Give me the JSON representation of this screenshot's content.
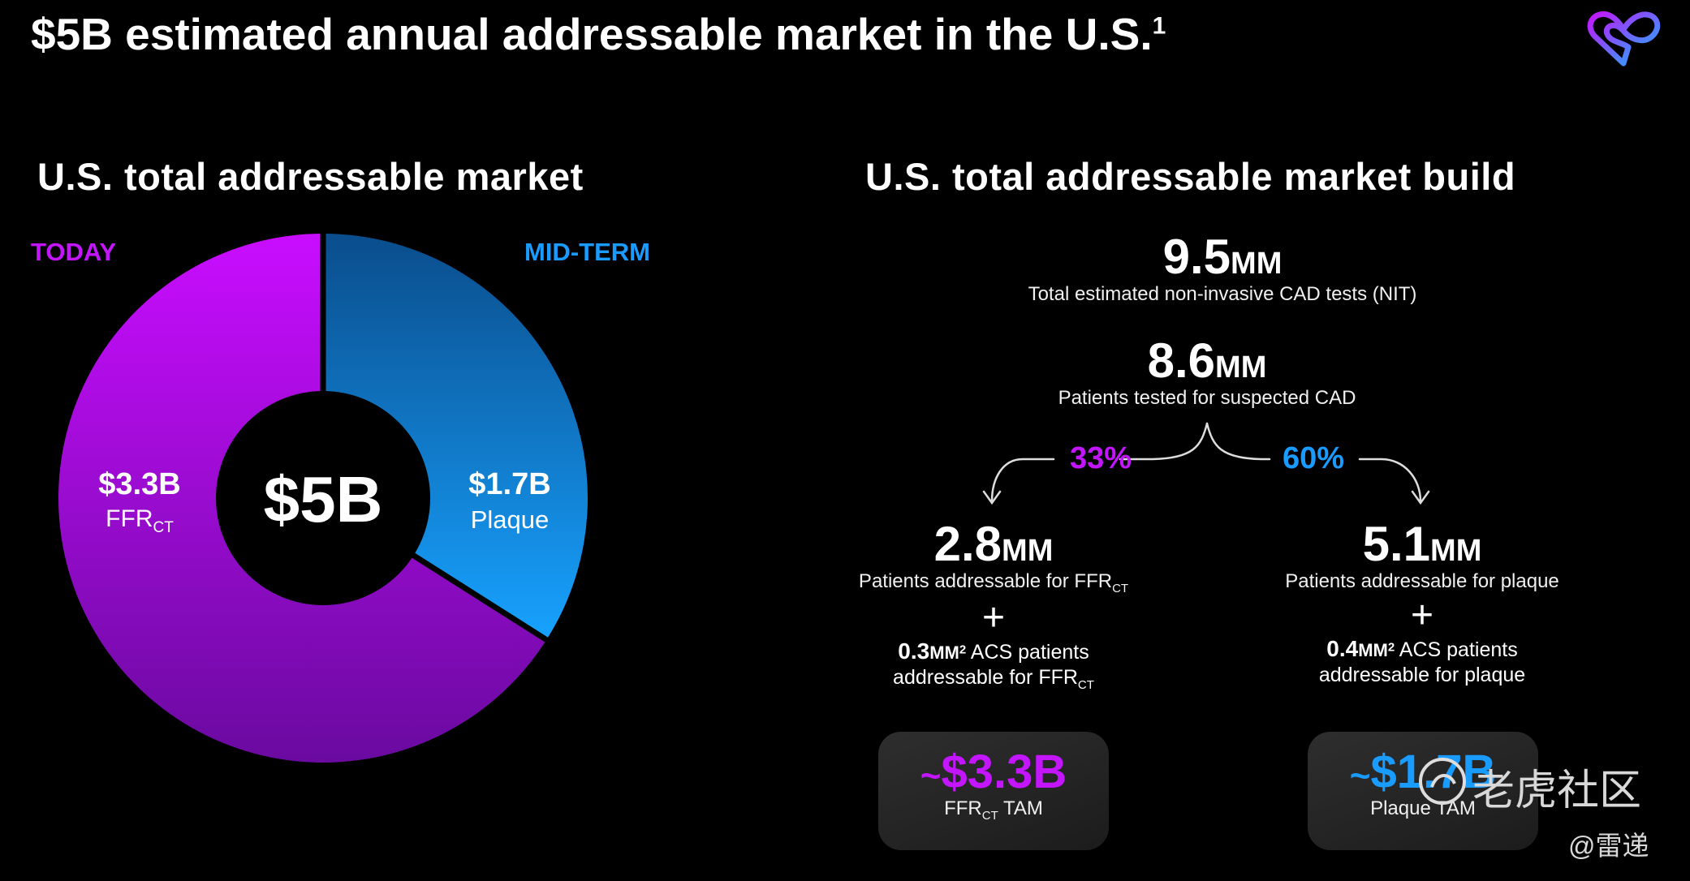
{
  "title": {
    "text": "$5B estimated annual addressable market in the U.S.",
    "footnote": "1"
  },
  "left": {
    "title": "U.S. total addressable market",
    "today_label": "TODAY",
    "midterm_label": "MID-TERM"
  },
  "chart_data": {
    "type": "pie",
    "center_label": "$5B",
    "series": [
      {
        "name": "FFR",
        "name_sub": "CT",
        "value_label": "$3.3B",
        "value": 3.3,
        "color": "#b30fe6"
      },
      {
        "name": "Plaque",
        "value_label": "$1.7B",
        "value": 1.7,
        "color": "#137ee0"
      }
    ]
  },
  "right": {
    "title": "U.S. total addressable market build",
    "nit": {
      "value": "9.5",
      "unit": "MM",
      "desc": "Total estimated non-invasive CAD tests (NIT)"
    },
    "tested": {
      "value": "8.6",
      "unit": "MM",
      "desc": "Patients tested for suspected CAD"
    },
    "split_left_pct": "33%",
    "split_right_pct": "60%",
    "ffr": {
      "value": "2.8",
      "unit": "MM",
      "desc": "Patients addressable for FFR",
      "desc_sub": "CT",
      "plus": "+",
      "acs_value": "0.3",
      "acs_unit": "MM",
      "acs_sup": "2",
      "acs_text": " ACS patients",
      "acs_line2": "addressable for FFR",
      "acs_line2_sub": "CT",
      "tam_tilde": "~",
      "tam_value": "$3.3B",
      "tam_label": "FFR",
      "tam_label_sub": "CT",
      "tam_label_after": " TAM"
    },
    "plaque": {
      "value": "5.1",
      "unit": "MM",
      "desc": "Patients addressable for plaque",
      "plus": "+",
      "acs_value": "0.4",
      "acs_unit": "MM",
      "acs_sup": "2",
      "acs_text": " ACS patients",
      "acs_line2": "addressable for plaque",
      "tam_tilde": "~",
      "tam_value": "$1.7B",
      "tam_label": "Plaque TAM"
    }
  },
  "colors": {
    "purple": "#c415ff",
    "blue": "#199bff",
    "background": "#000000"
  },
  "watermark": {
    "brand": "老虎社区",
    "user": "@雷递"
  },
  "logo_icon": "heart-infinity-logo-icon"
}
